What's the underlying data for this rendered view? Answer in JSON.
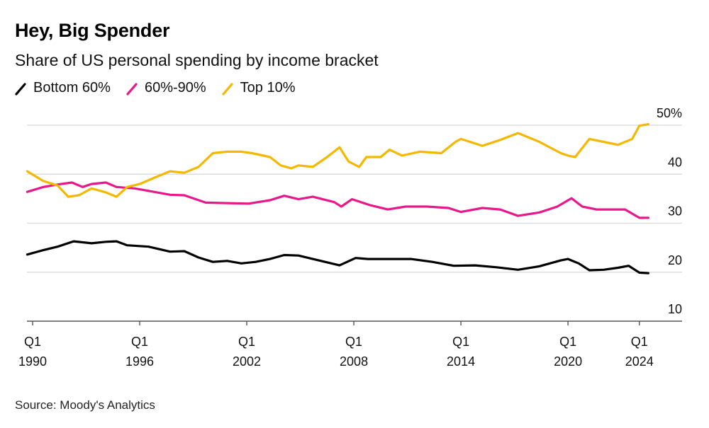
{
  "chart_data": {
    "type": "line",
    "title": "Hey, Big Spender",
    "subtitle": "Share of US personal spending by income bracket",
    "source": "Source: Moody's Analytics",
    "xlabel": "",
    "ylabel": "",
    "ylim": [
      10,
      50
    ],
    "xlim": [
      1989.7,
      2027.4
    ],
    "grid": true,
    "legend_position": "top-left",
    "y_ticks": [
      {
        "value": 50,
        "label": "50%"
      },
      {
        "value": 40,
        "label": "40"
      },
      {
        "value": 30,
        "label": "30"
      },
      {
        "value": 20,
        "label": "20"
      },
      {
        "value": 10,
        "label": "10"
      }
    ],
    "x_ticks": [
      {
        "value": 1990,
        "q": "Q1",
        "year": "1990"
      },
      {
        "value": 1996,
        "q": "Q1",
        "year": "1996"
      },
      {
        "value": 2002,
        "q": "Q1",
        "year": "2002"
      },
      {
        "value": 2008,
        "q": "Q1",
        "year": "2008"
      },
      {
        "value": 2014,
        "q": "Q1",
        "year": "2014"
      },
      {
        "value": 2020,
        "q": "Q1",
        "year": "2020"
      },
      {
        "value": 2024,
        "q": "Q1",
        "year": "2024"
      }
    ],
    "series": [
      {
        "name": "Bottom 60%",
        "color": "#000000",
        "points": [
          [
            1989.7,
            23.6
          ],
          [
            1990.6,
            24.5
          ],
          [
            1991.4,
            25.2
          ],
          [
            1992.3,
            26.3
          ],
          [
            1993.3,
            25.9
          ],
          [
            1994.1,
            26.2
          ],
          [
            1994.7,
            26.3
          ],
          [
            1995.3,
            25.5
          ],
          [
            1996.5,
            25.2
          ],
          [
            1997.7,
            24.2
          ],
          [
            1998.5,
            24.3
          ],
          [
            1999.3,
            23.0
          ],
          [
            2000.1,
            22.1
          ],
          [
            2000.9,
            22.3
          ],
          [
            2001.7,
            21.8
          ],
          [
            2002.5,
            22.1
          ],
          [
            2003.3,
            22.7
          ],
          [
            2004.1,
            23.5
          ],
          [
            2004.9,
            23.4
          ],
          [
            2005.7,
            22.7
          ],
          [
            2007.2,
            21.4
          ],
          [
            2008.1,
            22.9
          ],
          [
            2008.8,
            22.7
          ],
          [
            2009.8,
            22.7
          ],
          [
            2011.2,
            22.7
          ],
          [
            2012.4,
            22.1
          ],
          [
            2013.6,
            21.3
          ],
          [
            2014.8,
            21.4
          ],
          [
            2016.0,
            21.0
          ],
          [
            2017.2,
            20.5
          ],
          [
            2018.4,
            21.2
          ],
          [
            2019.6,
            22.4
          ],
          [
            2020.0,
            22.7
          ],
          [
            2020.6,
            21.8
          ],
          [
            2021.2,
            20.4
          ],
          [
            2022.0,
            20.5
          ],
          [
            2022.8,
            20.9
          ],
          [
            2023.4,
            21.3
          ],
          [
            2024.0,
            19.9
          ],
          [
            2024.5,
            19.8
          ]
        ]
      },
      {
        "name": "60%-90%",
        "color": "#e8178a",
        "points": [
          [
            1989.7,
            36.4
          ],
          [
            1990.6,
            37.4
          ],
          [
            1991.4,
            37.9
          ],
          [
            1992.2,
            38.3
          ],
          [
            1992.8,
            37.4
          ],
          [
            1993.3,
            38.0
          ],
          [
            1994.1,
            38.3
          ],
          [
            1994.7,
            37.4
          ],
          [
            1995.7,
            37.1
          ],
          [
            1996.5,
            36.6
          ],
          [
            1997.7,
            35.8
          ],
          [
            1998.5,
            35.7
          ],
          [
            1999.7,
            34.2
          ],
          [
            2000.9,
            34.1
          ],
          [
            2002.1,
            34.0
          ],
          [
            2003.3,
            34.7
          ],
          [
            2004.1,
            35.6
          ],
          [
            2004.9,
            34.9
          ],
          [
            2005.7,
            35.4
          ],
          [
            2006.9,
            34.3
          ],
          [
            2007.3,
            33.4
          ],
          [
            2007.9,
            34.9
          ],
          [
            2008.9,
            33.7
          ],
          [
            2009.9,
            32.8
          ],
          [
            2010.9,
            33.4
          ],
          [
            2012.1,
            33.4
          ],
          [
            2013.3,
            33.1
          ],
          [
            2014.0,
            32.3
          ],
          [
            2015.2,
            33.1
          ],
          [
            2016.2,
            32.8
          ],
          [
            2017.2,
            31.5
          ],
          [
            2018.4,
            32.2
          ],
          [
            2019.4,
            33.4
          ],
          [
            2020.2,
            35.1
          ],
          [
            2020.8,
            33.4
          ],
          [
            2021.6,
            32.8
          ],
          [
            2022.4,
            32.8
          ],
          [
            2023.2,
            32.8
          ],
          [
            2024.0,
            31.1
          ],
          [
            2024.5,
            31.1
          ]
        ]
      },
      {
        "name": "Top 10%",
        "color": "#f5b800",
        "points": [
          [
            1989.7,
            40.6
          ],
          [
            1990.6,
            38.6
          ],
          [
            1991.4,
            37.7
          ],
          [
            1992.0,
            35.4
          ],
          [
            1992.6,
            35.7
          ],
          [
            1993.3,
            37.1
          ],
          [
            1994.1,
            36.3
          ],
          [
            1994.7,
            35.4
          ],
          [
            1995.3,
            37.4
          ],
          [
            1996.0,
            38.0
          ],
          [
            1996.9,
            39.4
          ],
          [
            1997.7,
            40.6
          ],
          [
            1998.5,
            40.3
          ],
          [
            1999.3,
            41.5
          ],
          [
            2000.1,
            44.3
          ],
          [
            2000.9,
            44.6
          ],
          [
            2001.7,
            44.6
          ],
          [
            2002.3,
            44.3
          ],
          [
            2003.3,
            43.5
          ],
          [
            2003.9,
            41.8
          ],
          [
            2004.5,
            41.2
          ],
          [
            2004.9,
            41.8
          ],
          [
            2005.7,
            41.5
          ],
          [
            2006.5,
            43.5
          ],
          [
            2007.2,
            45.5
          ],
          [
            2007.7,
            42.6
          ],
          [
            2008.3,
            41.5
          ],
          [
            2008.7,
            43.5
          ],
          [
            2009.5,
            43.5
          ],
          [
            2010.0,
            45.0
          ],
          [
            2010.7,
            43.8
          ],
          [
            2011.7,
            44.6
          ],
          [
            2012.9,
            44.3
          ],
          [
            2013.7,
            46.6
          ],
          [
            2014.0,
            47.2
          ],
          [
            2015.2,
            45.8
          ],
          [
            2016.2,
            47.0
          ],
          [
            2017.2,
            48.4
          ],
          [
            2018.4,
            46.6
          ],
          [
            2019.6,
            44.3
          ],
          [
            2020.0,
            43.8
          ],
          [
            2020.4,
            43.5
          ],
          [
            2021.2,
            47.2
          ],
          [
            2022.0,
            46.6
          ],
          [
            2022.8,
            46.0
          ],
          [
            2023.6,
            47.2
          ],
          [
            2024.0,
            49.9
          ],
          [
            2024.5,
            50.2
          ]
        ]
      }
    ]
  }
}
